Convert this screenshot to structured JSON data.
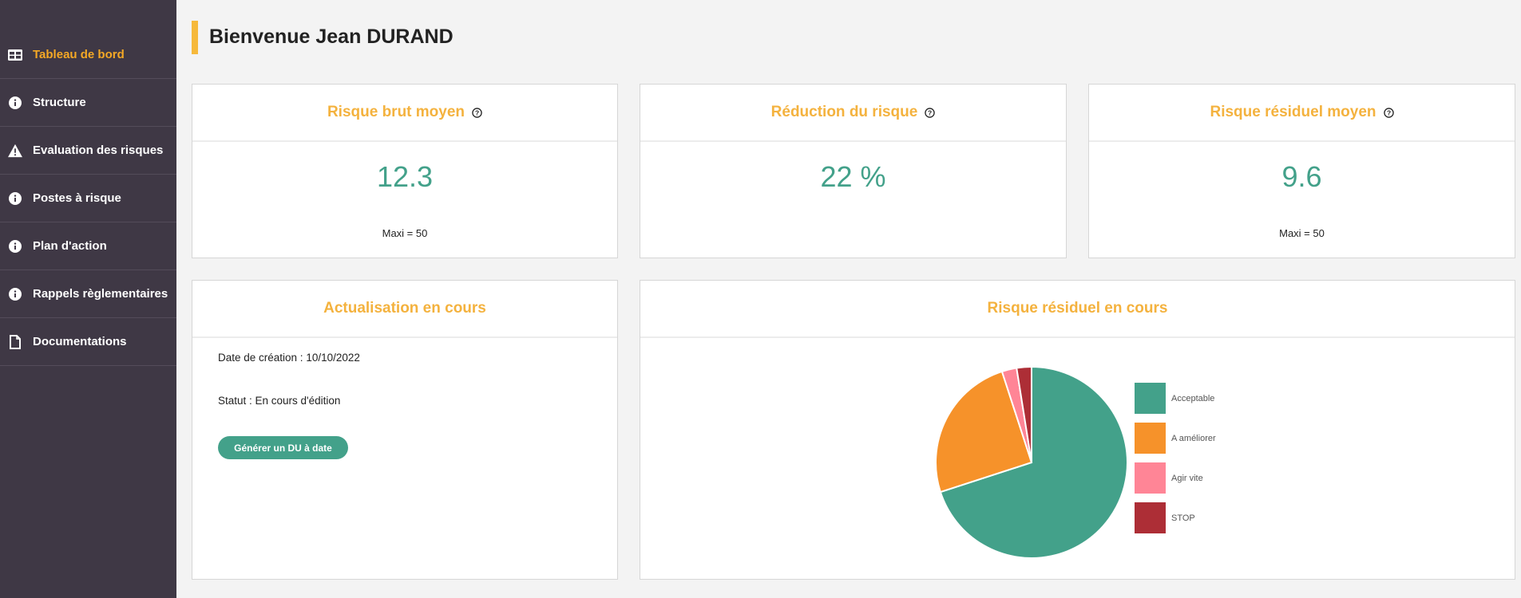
{
  "sidebar": {
    "items": [
      {
        "label": "Tableau de bord",
        "icon": "dashboard-icon",
        "active": true
      },
      {
        "label": "Structure",
        "icon": "info-icon"
      },
      {
        "label": "Evaluation des risques",
        "icon": "warning-icon"
      },
      {
        "label": "Postes à risque",
        "icon": "info-icon"
      },
      {
        "label": "Plan d'action",
        "icon": "info-icon"
      },
      {
        "label": "Rappels règlementaires",
        "icon": "info-icon"
      },
      {
        "label": "Documentations",
        "icon": "document-icon"
      }
    ]
  },
  "header": {
    "title": "Bienvenue Jean DURAND"
  },
  "stats": {
    "gross": {
      "title": "Risque brut moyen",
      "value": "12.3",
      "note": "Maxi = 50"
    },
    "reduction": {
      "title": "Réduction du risque",
      "value": "22 %"
    },
    "residual": {
      "title": "Risque résiduel moyen",
      "value": "9.6",
      "note": "Maxi = 50"
    }
  },
  "update": {
    "title": "Actualisation en cours",
    "created": "Date de création : 10/10/2022",
    "status": "Statut : En cours d'édition",
    "button": "Générer un DU à date"
  },
  "chart_data": {
    "type": "pie",
    "title": "Risque résiduel en cours",
    "legend_position": "right",
    "categories": [
      "Acceptable",
      "A améliorer",
      "Agir vite",
      "STOP"
    ],
    "values": [
      70,
      25,
      2.5,
      2.5
    ],
    "colors": [
      "#43a18a",
      "#f6922a",
      "#ff8596",
      "#ad2e36"
    ]
  },
  "colors": {
    "accent": "#f4b23e",
    "teal": "#43a18a",
    "sidebar": "#3f3845"
  }
}
